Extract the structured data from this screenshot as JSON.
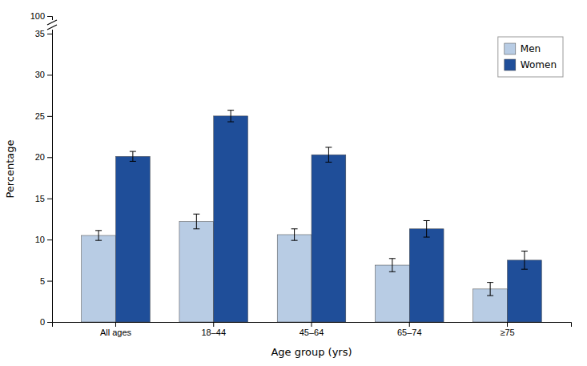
{
  "chart_data": {
    "type": "bar",
    "categories": [
      "All ages",
      "18–44",
      "45–64",
      "65–74",
      "≥75"
    ],
    "series": [
      {
        "name": "Men",
        "color": "#b8cce4",
        "values": [
          10.5,
          12.2,
          10.6,
          6.9,
          4.0
        ],
        "errors": [
          0.6,
          0.9,
          0.7,
          0.8,
          0.8
        ]
      },
      {
        "name": "Women",
        "color": "#1f4e99",
        "values": [
          20.1,
          25.0,
          20.3,
          11.3,
          7.5
        ],
        "errors": [
          0.6,
          0.7,
          0.9,
          1.0,
          1.1
        ]
      }
    ],
    "xlabel": "Age group (yrs)",
    "ylabel": "Percentage",
    "ylim": [
      0,
      100
    ],
    "yticks": [
      0,
      5,
      10,
      15,
      20,
      25,
      30,
      35,
      100
    ],
    "grid": false,
    "legend": "upper right"
  }
}
